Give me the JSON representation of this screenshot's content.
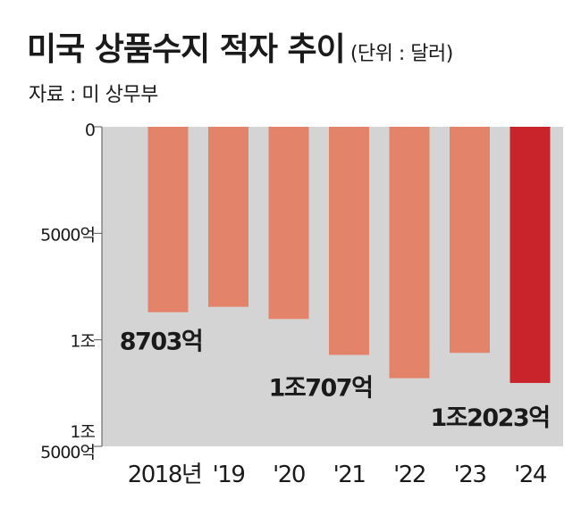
{
  "header": {
    "title": "미국 상품수지 적자 추이",
    "unit": "(단위 : 달러)",
    "source": "자료 : 미 상무부"
  },
  "colors": {
    "bar": "#e3836a",
    "highlight": "#c9242b",
    "plot_bg": "#d4d4d4"
  },
  "chart_data": {
    "type": "bar",
    "title": "미국 상품수지 적자 추이",
    "unit": "(단위 : 달러)",
    "ylabel": "",
    "xlabel": "",
    "categories": [
      "2018년",
      "'19",
      "'20",
      "'21",
      "'22",
      "'23",
      "'24"
    ],
    "values": [
      8703,
      8450,
      9020,
      10707,
      11800,
      10610,
      12023
    ],
    "value_unit": "억 달러",
    "ylim": [
      0,
      15000
    ],
    "y_inverted": true,
    "y_ticks": [
      {
        "value": 0,
        "label": "0"
      },
      {
        "value": 5000,
        "label": "5000억"
      },
      {
        "value": 10000,
        "label": "1조"
      },
      {
        "value": 15000,
        "label": "1조 5000억"
      }
    ],
    "data_labels": [
      {
        "index": 0,
        "text": "8703억"
      },
      {
        "index": 3,
        "text": "1조707억"
      },
      {
        "index": 6,
        "text": "1조2023억"
      }
    ],
    "highlight_index": 6,
    "grid": false,
    "legend": "none"
  }
}
